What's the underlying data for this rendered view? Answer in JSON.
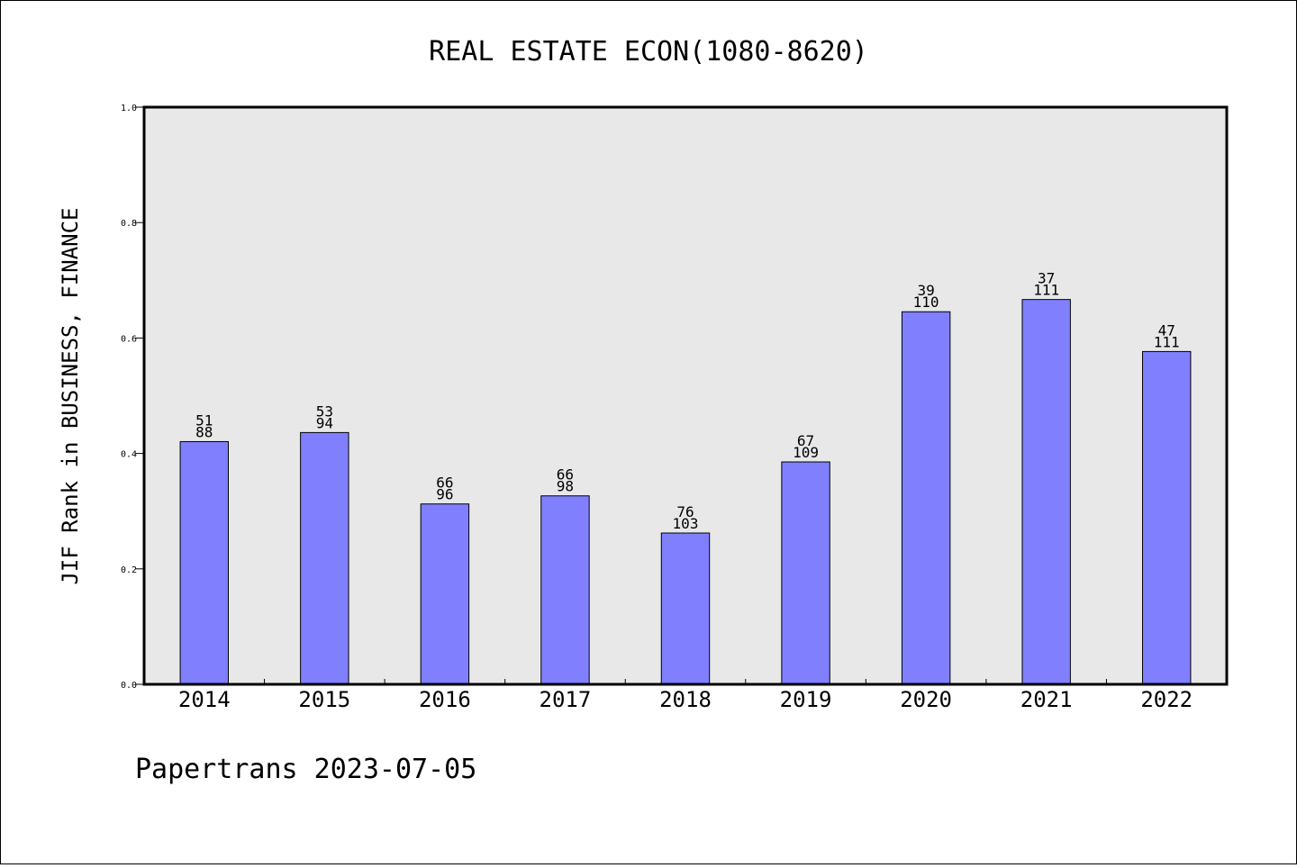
{
  "chart_data": {
    "type": "bar",
    "title": "REAL ESTATE ECON(1080-8620)",
    "xlabel": "",
    "ylabel": "JIF Rank in BUSINESS, FINANCE",
    "ylim": [
      0,
      1.0
    ],
    "yticks": [
      "0.0",
      "0.2",
      "0.4",
      "0.6",
      "0.8",
      "1.0"
    ],
    "grid": false,
    "legend": "none",
    "bar_color": "#8080ff",
    "background_color": "#e8e8e8",
    "categories": [
      "2014",
      "2015",
      "2016",
      "2017",
      "2018",
      "2019",
      "2020",
      "2021",
      "2022"
    ],
    "values": [
      0.4205,
      0.4362,
      0.3125,
      0.3265,
      0.2621,
      0.3853,
      0.6455,
      0.6667,
      0.5766
    ],
    "labels": [
      [
        "51",
        "88"
      ],
      [
        "53",
        "94"
      ],
      [
        "66",
        "96"
      ],
      [
        "66",
        "98"
      ],
      [
        "76",
        "103"
      ],
      [
        "67",
        "109"
      ],
      [
        "39",
        "110"
      ],
      [
        "37",
        "111"
      ],
      [
        "47",
        "111"
      ]
    ]
  },
  "footer": "Papertrans 2023-07-05"
}
